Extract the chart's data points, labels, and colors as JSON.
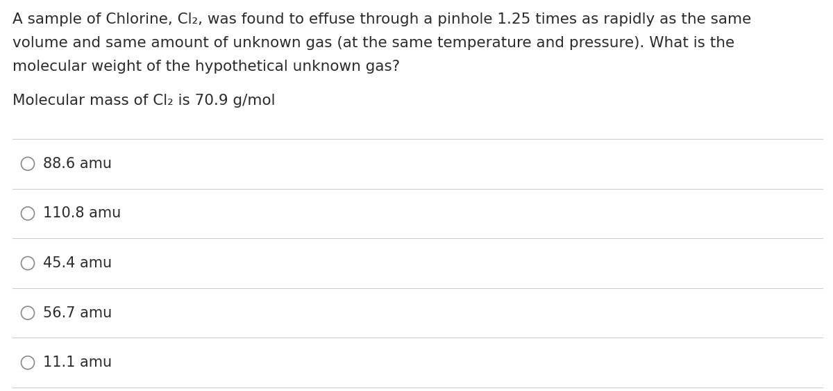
{
  "background_color": "#ffffff",
  "question_line1": "A sample of Chlorine, Cl₂, was found to effuse through a pinhole 1.25 times as rapidly as the same",
  "question_line2": "volume and same amount of unknown gas (at the same temperature and pressure). What is the",
  "question_line3": "molecular weight of the hypothetical unknown gas?",
  "given_line": "Molecular mass of Cl₂ is 70.9 g/mol",
  "options": [
    "88.6 amu",
    "110.8 amu",
    "45.4 amu",
    "56.7 amu",
    "11.1 amu"
  ],
  "text_color": "#2b2b2b",
  "line_color": "#cccccc",
  "circle_edge_color": "#888888",
  "font_size_question": 15.5,
  "font_size_given": 15.5,
  "font_size_options": 15.0,
  "fig_width": 12.0,
  "fig_height": 5.63,
  "dpi": 100
}
